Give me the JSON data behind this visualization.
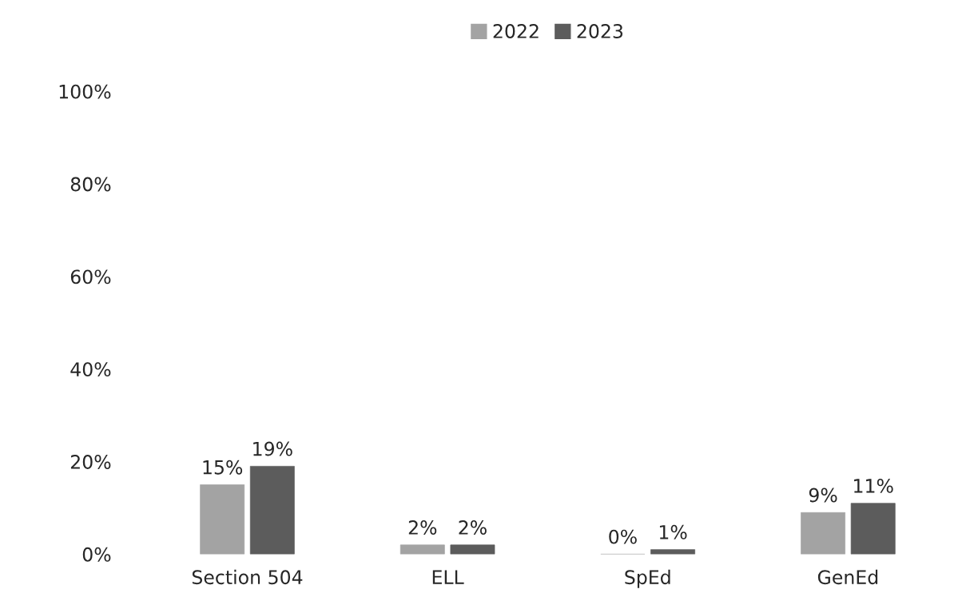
{
  "chart_data": {
    "type": "bar",
    "categories": [
      "Section 504",
      "ELL",
      "SpEd",
      "GenEd"
    ],
    "series": [
      {
        "name": "2022",
        "color": "#a3a3a3",
        "values": [
          15,
          2,
          0,
          9
        ],
        "value_labels": [
          "15%",
          "2%",
          "0%",
          "9%"
        ]
      },
      {
        "name": "2023",
        "color": "#5c5c5c",
        "values": [
          19,
          2,
          1,
          11
        ],
        "value_labels": [
          "19%",
          "2%",
          "1%",
          "11%"
        ]
      }
    ],
    "ylim": [
      0,
      100
    ],
    "yticks": [
      {
        "value": 0,
        "label": "0%"
      },
      {
        "value": 20,
        "label": "20%"
      },
      {
        "value": 40,
        "label": "40%"
      },
      {
        "value": 60,
        "label": "60%"
      },
      {
        "value": 80,
        "label": "80%"
      },
      {
        "value": 100,
        "label": "100%"
      }
    ],
    "grid": false,
    "legend": "top"
  }
}
